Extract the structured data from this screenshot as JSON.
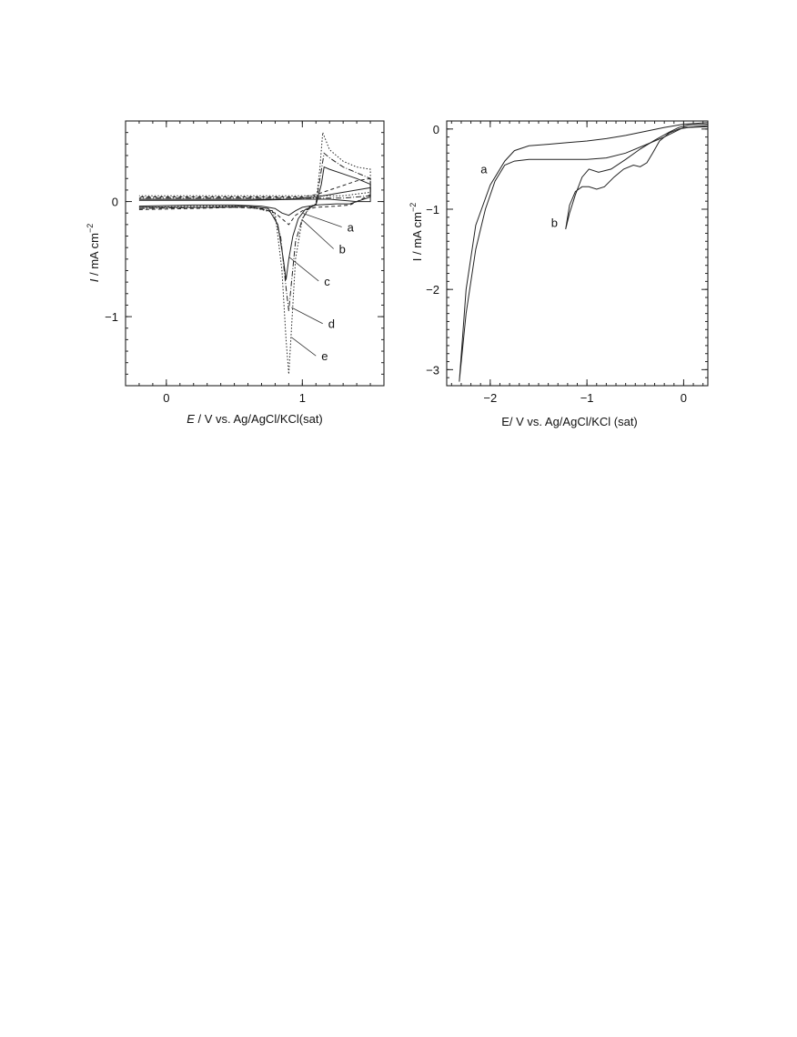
{
  "chart_data": [
    {
      "type": "line",
      "xlabel_var": "E",
      "xlabel_rest": " / V vs. Ag/AgCl/KCl(sat)",
      "ylabel_var": "I",
      "ylabel_rest": " / mA cm",
      "ylabel_exp": "−2",
      "xlim": [
        -0.3,
        1.6
      ],
      "ylim": [
        -1.6,
        0.7
      ],
      "xticks": [
        {
          "v": 0,
          "label": "0"
        },
        {
          "v": 1,
          "label": "1"
        }
      ],
      "yticks": [
        {
          "v": 0,
          "label": "0"
        },
        {
          "v": -1,
          "label": "−1"
        }
      ],
      "series": [
        {
          "name": "a",
          "dash": "none",
          "width": 1.0,
          "x": [
            -0.2,
            0.2,
            0.5,
            0.7,
            0.8,
            0.85,
            0.9,
            0.95,
            1.0,
            1.1,
            1.25,
            1.35,
            1.5,
            1.5,
            1.4,
            1.3,
            1.2,
            1.1,
            1.0,
            0.9,
            0.8,
            0.6,
            0.3,
            -0.2
          ],
          "y": [
            -0.04,
            -0.03,
            -0.03,
            -0.04,
            -0.06,
            -0.1,
            -0.12,
            -0.08,
            -0.05,
            -0.03,
            -0.02,
            -0.02,
            0.04,
            0.12,
            0.1,
            0.08,
            0.06,
            0.04,
            0.03,
            0.02,
            0.02,
            0.02,
            0.02,
            0.02
          ]
        },
        {
          "name": "b",
          "dash": "4 3",
          "width": 1.0,
          "x": [
            -0.2,
            0.2,
            0.5,
            0.7,
            0.8,
            0.85,
            0.9,
            0.95,
            1.0,
            1.1,
            1.25,
            1.35,
            1.5,
            1.5,
            1.4,
            1.3,
            1.2,
            1.1,
            1.0,
            0.8,
            0.4,
            -0.2
          ],
          "y": [
            -0.07,
            -0.06,
            -0.05,
            -0.06,
            -0.1,
            -0.15,
            -0.2,
            -0.12,
            -0.08,
            -0.05,
            -0.04,
            -0.03,
            0.06,
            0.2,
            0.18,
            0.14,
            0.1,
            0.06,
            0.04,
            0.04,
            0.04,
            0.04
          ]
        },
        {
          "name": "c",
          "dash": "none",
          "width": 1.4,
          "x": [
            -0.2,
            0.3,
            0.6,
            0.75,
            0.82,
            0.86,
            0.88,
            0.9,
            0.93,
            0.97,
            1.02,
            1.1,
            1.14,
            1.16,
            1.2,
            1.3,
            1.4,
            1.5,
            1.5,
            1.4,
            1.2,
            1.0,
            0.6,
            -0.2
          ],
          "y": [
            -0.05,
            -0.05,
            -0.04,
            -0.06,
            -0.2,
            -0.5,
            -0.68,
            -0.5,
            -0.3,
            -0.15,
            -0.07,
            -0.03,
            0.15,
            0.3,
            0.28,
            0.24,
            0.2,
            0.15,
            0.0,
            0.0,
            0.02,
            0.02,
            0.01,
            0.01
          ]
        },
        {
          "name": "d",
          "dash": "6 2 1 2",
          "width": 1.0,
          "x": [
            -0.2,
            0.3,
            0.6,
            0.78,
            0.84,
            0.88,
            0.9,
            0.92,
            0.95,
            1.0,
            1.05,
            1.1,
            1.13,
            1.16,
            1.2,
            1.3,
            1.4,
            1.5,
            1.5,
            1.3,
            1.0,
            0.6,
            -0.2
          ],
          "y": [
            -0.06,
            -0.05,
            -0.05,
            -0.08,
            -0.3,
            -0.75,
            -0.95,
            -0.7,
            -0.35,
            -0.15,
            -0.06,
            -0.02,
            0.2,
            0.42,
            0.38,
            0.3,
            0.25,
            0.2,
            0.05,
            0.03,
            0.03,
            0.03,
            0.03
          ]
        },
        {
          "name": "e",
          "dash": "1.5 2",
          "width": 1.0,
          "x": [
            -0.2,
            0.3,
            0.6,
            0.8,
            0.85,
            0.88,
            0.9,
            0.92,
            0.95,
            1.0,
            1.05,
            1.1,
            1.13,
            1.15,
            1.2,
            1.3,
            1.4,
            1.5,
            1.5,
            1.3,
            1.0,
            0.6,
            -0.2
          ],
          "y": [
            -0.05,
            -0.04,
            -0.04,
            -0.1,
            -0.6,
            -1.2,
            -1.5,
            -1.1,
            -0.5,
            -0.15,
            -0.05,
            -0.02,
            0.3,
            0.6,
            0.45,
            0.35,
            0.3,
            0.28,
            0.08,
            0.05,
            0.05,
            0.05,
            0.05
          ]
        }
      ],
      "labels": [
        {
          "text": "a",
          "x": 1.33,
          "y": -0.26,
          "tx": 1.0,
          "ty": -0.1
        },
        {
          "text": "b",
          "x": 1.27,
          "y": -0.45,
          "tx": 1.0,
          "ty": -0.16
        },
        {
          "text": "c",
          "x": 1.16,
          "y": -0.73,
          "tx": 0.9,
          "ty": -0.48
        },
        {
          "text": "d",
          "x": 1.19,
          "y": -1.1,
          "tx": 0.92,
          "ty": -0.92
        },
        {
          "text": "e",
          "x": 1.14,
          "y": -1.38,
          "tx": 0.92,
          "ty": -1.18
        }
      ]
    },
    {
      "type": "line",
      "xlabel": "E/ V vs. Ag/AgCl/KCl (sat)",
      "ylabel_rest": "I / mA  cm",
      "ylabel_exp": "−2",
      "xlim": [
        -2.45,
        0.25
      ],
      "ylim": [
        -3.2,
        0.1
      ],
      "xticks": [
        {
          "v": -2,
          "label": "−2"
        },
        {
          "v": -1,
          "label": "−1"
        },
        {
          "v": 0,
          "label": "0"
        }
      ],
      "yticks": [
        {
          "v": 0,
          "label": "0"
        },
        {
          "v": -1,
          "label": "−1"
        },
        {
          "v": -2,
          "label": "−2"
        },
        {
          "v": -3,
          "label": "−3"
        }
      ],
      "series": [
        {
          "name": "a",
          "dash": "none",
          "width": 1.0,
          "x": [
            -2.32,
            -2.25,
            -2.15,
            -2.05,
            -1.95,
            -1.85,
            -1.75,
            -1.6,
            -1.4,
            -1.2,
            -1.0,
            -0.8,
            -0.6,
            -0.4,
            -0.2,
            0.0,
            0.25,
            0.25,
            0.0,
            -0.2,
            -0.4,
            -0.6,
            -0.8,
            -1.0,
            -1.2,
            -1.4,
            -1.6,
            -1.75,
            -1.85,
            -2.0,
            -2.15,
            -2.25,
            -2.32
          ],
          "y": [
            -3.15,
            -2.3,
            -1.5,
            -1.0,
            -0.65,
            -0.45,
            -0.4,
            -0.38,
            -0.38,
            -0.38,
            -0.38,
            -0.36,
            -0.3,
            -0.2,
            -0.1,
            0.02,
            0.04,
            0.08,
            0.06,
            0.02,
            -0.03,
            -0.08,
            -0.12,
            -0.15,
            -0.17,
            -0.19,
            -0.21,
            -0.27,
            -0.4,
            -0.7,
            -1.2,
            -2.0,
            -3.15
          ]
        },
        {
          "name": "b",
          "dash": "none",
          "width": 1.0,
          "x": [
            -1.22,
            -1.18,
            -1.12,
            -1.05,
            -0.98,
            -0.9,
            -0.82,
            -0.72,
            -0.62,
            -0.52,
            -0.45,
            -0.38,
            -0.32,
            -0.25,
            -0.15,
            -0.05,
            0.05,
            0.25,
            0.25,
            0.05,
            -0.05,
            -0.15,
            -0.3,
            -0.45,
            -0.6,
            -0.75,
            -0.88,
            -0.98,
            -1.05,
            -1.12,
            -1.18,
            -1.22
          ],
          "y": [
            -1.25,
            -0.95,
            -0.78,
            -0.72,
            -0.72,
            -0.75,
            -0.72,
            -0.6,
            -0.5,
            -0.45,
            -0.47,
            -0.42,
            -0.3,
            -0.15,
            -0.05,
            0.0,
            0.02,
            0.03,
            0.06,
            0.05,
            0.02,
            -0.04,
            -0.14,
            -0.25,
            -0.38,
            -0.5,
            -0.54,
            -0.5,
            -0.6,
            -0.82,
            -1.05,
            -1.25
          ]
        }
      ],
      "labels": [
        {
          "text": "a",
          "x": -2.1,
          "y": -0.55
        },
        {
          "text": "b",
          "x": -1.37,
          "y": -1.22
        }
      ]
    }
  ]
}
